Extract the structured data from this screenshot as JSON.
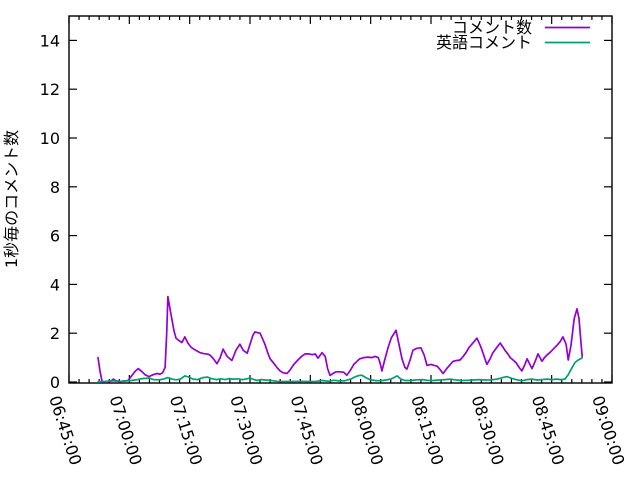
{
  "chart_data": {
    "type": "line",
    "title": "",
    "xlabel": "",
    "ylabel": "1秒毎のコメント数",
    "grid": false,
    "legend_position": "top-right-inside",
    "ylim": [
      0,
      15
    ],
    "y_ticks": [
      0,
      2,
      4,
      6,
      8,
      10,
      12,
      14
    ],
    "xlim_minutes": [
      0,
      135
    ],
    "x_axis": {
      "start": "06:45:00",
      "end": "09:00:00",
      "tick_interval_minutes": 15,
      "minor_tick_minutes": 2.5,
      "tick_labels": [
        "06:45:00",
        "07:00:00",
        "07:15:00",
        "07:30:00",
        "07:45:00",
        "08:00:00",
        "08:15:00",
        "08:30:00",
        "08:45:00",
        "09:00:00"
      ]
    },
    "x_unit": "minutes after 06:45:00",
    "series": [
      {
        "name": "コメント数",
        "color": "#9400d3",
        "points": [
          [
            7.2,
            1.0
          ],
          [
            7.7,
            0.45
          ],
          [
            8.2,
            0.03
          ],
          [
            9.4,
            0.0
          ],
          [
            10.4,
            0.03
          ],
          [
            11.0,
            0.12
          ],
          [
            11.7,
            0.05
          ],
          [
            12.8,
            0.02
          ],
          [
            13.8,
            0.04
          ],
          [
            14.7,
            0.06
          ],
          [
            15.7,
            0.28
          ],
          [
            16.5,
            0.45
          ],
          [
            17.2,
            0.55
          ],
          [
            18.2,
            0.42
          ],
          [
            18.9,
            0.3
          ],
          [
            19.9,
            0.22
          ],
          [
            20.9,
            0.3
          ],
          [
            21.9,
            0.35
          ],
          [
            22.6,
            0.32
          ],
          [
            23.3,
            0.38
          ],
          [
            23.9,
            0.6
          ],
          [
            24.3,
            2.0
          ],
          [
            24.6,
            3.5
          ],
          [
            25.1,
            3.0
          ],
          [
            25.6,
            2.55
          ],
          [
            26.1,
            2.1
          ],
          [
            26.6,
            1.8
          ],
          [
            27.3,
            1.7
          ],
          [
            28.1,
            1.62
          ],
          [
            28.8,
            1.85
          ],
          [
            29.6,
            1.58
          ],
          [
            30.4,
            1.42
          ],
          [
            31.3,
            1.32
          ],
          [
            32.6,
            1.2
          ],
          [
            33.6,
            1.16
          ],
          [
            34.6,
            1.14
          ],
          [
            35.1,
            1.1
          ],
          [
            35.9,
            0.95
          ],
          [
            36.8,
            0.75
          ],
          [
            37.6,
            1.0
          ],
          [
            38.3,
            1.35
          ],
          [
            39.3,
            1.05
          ],
          [
            40.5,
            0.88
          ],
          [
            41.5,
            1.3
          ],
          [
            42.5,
            1.55
          ],
          [
            43.3,
            1.3
          ],
          [
            44.3,
            1.18
          ],
          [
            45.0,
            1.55
          ],
          [
            45.7,
            1.9
          ],
          [
            46.2,
            2.05
          ],
          [
            47.5,
            2.0
          ],
          [
            48.7,
            1.55
          ],
          [
            49.4,
            1.2
          ],
          [
            50.0,
            0.95
          ],
          [
            51.0,
            0.75
          ],
          [
            51.7,
            0.6
          ],
          [
            52.5,
            0.45
          ],
          [
            53.2,
            0.38
          ],
          [
            54.2,
            0.35
          ],
          [
            55.0,
            0.5
          ],
          [
            55.9,
            0.72
          ],
          [
            56.9,
            0.9
          ],
          [
            57.8,
            1.05
          ],
          [
            58.7,
            1.15
          ],
          [
            59.7,
            1.15
          ],
          [
            60.5,
            1.12
          ],
          [
            61.2,
            1.15
          ],
          [
            61.9,
            0.98
          ],
          [
            62.9,
            1.2
          ],
          [
            63.7,
            1.05
          ],
          [
            64.3,
            0.55
          ],
          [
            64.9,
            0.27
          ],
          [
            65.6,
            0.35
          ],
          [
            66.4,
            0.42
          ],
          [
            67.3,
            0.42
          ],
          [
            68.3,
            0.4
          ],
          [
            69.1,
            0.28
          ],
          [
            70.0,
            0.5
          ],
          [
            70.8,
            0.72
          ],
          [
            71.6,
            0.85
          ],
          [
            72.3,
            0.95
          ],
          [
            73.3,
            1.0
          ],
          [
            74.3,
            1.02
          ],
          [
            75.3,
            1.0
          ],
          [
            76.1,
            1.05
          ],
          [
            76.9,
            1.0
          ],
          [
            77.4,
            0.75
          ],
          [
            77.8,
            0.45
          ],
          [
            78.5,
            0.9
          ],
          [
            79.3,
            1.4
          ],
          [
            80.1,
            1.8
          ],
          [
            81.3,
            2.12
          ],
          [
            82.1,
            1.5
          ],
          [
            82.8,
            0.95
          ],
          [
            83.5,
            0.6
          ],
          [
            84.0,
            0.53
          ],
          [
            84.8,
            0.9
          ],
          [
            85.5,
            1.3
          ],
          [
            86.5,
            1.38
          ],
          [
            87.5,
            1.4
          ],
          [
            88.3,
            1.1
          ],
          [
            89.0,
            0.68
          ],
          [
            90.0,
            0.72
          ],
          [
            90.8,
            0.68
          ],
          [
            91.5,
            0.65
          ],
          [
            92.3,
            0.5
          ],
          [
            93.0,
            0.35
          ],
          [
            93.9,
            0.55
          ],
          [
            94.7,
            0.7
          ],
          [
            95.5,
            0.85
          ],
          [
            96.4,
            0.88
          ],
          [
            97.2,
            0.9
          ],
          [
            98.0,
            1.05
          ],
          [
            98.7,
            1.2
          ],
          [
            99.4,
            1.4
          ],
          [
            99.9,
            1.5
          ],
          [
            100.7,
            1.65
          ],
          [
            101.4,
            1.8
          ],
          [
            102.1,
            1.55
          ],
          [
            102.7,
            1.3
          ],
          [
            103.3,
            1.0
          ],
          [
            103.9,
            0.72
          ],
          [
            104.7,
            0.95
          ],
          [
            105.4,
            1.2
          ],
          [
            106.3,
            1.4
          ],
          [
            107.2,
            1.6
          ],
          [
            107.8,
            1.45
          ],
          [
            108.4,
            1.3
          ],
          [
            109.1,
            1.15
          ],
          [
            109.7,
            1.0
          ],
          [
            110.4,
            0.9
          ],
          [
            111.1,
            0.8
          ],
          [
            111.9,
            0.6
          ],
          [
            112.6,
            0.45
          ],
          [
            113.3,
            0.7
          ],
          [
            113.9,
            0.95
          ],
          [
            114.5,
            0.75
          ],
          [
            115.1,
            0.55
          ],
          [
            115.9,
            0.85
          ],
          [
            116.6,
            1.15
          ],
          [
            117.1,
            1.0
          ],
          [
            117.6,
            0.85
          ],
          [
            118.2,
            1.0
          ],
          [
            118.8,
            1.1
          ],
          [
            119.5,
            1.2
          ],
          [
            120.1,
            1.3
          ],
          [
            120.7,
            1.4
          ],
          [
            121.3,
            1.5
          ],
          [
            122.1,
            1.65
          ],
          [
            122.8,
            1.85
          ],
          [
            123.6,
            1.55
          ],
          [
            124.1,
            0.9
          ],
          [
            124.8,
            1.5
          ],
          [
            125.6,
            2.6
          ],
          [
            126.3,
            3.0
          ],
          [
            126.8,
            2.6
          ],
          [
            127.3,
            1.6
          ],
          [
            127.6,
            1.05
          ]
        ]
      },
      {
        "name": "英語コメント",
        "color": "#009e73",
        "points": [
          [
            7.2,
            0.0
          ],
          [
            9.0,
            0.02
          ],
          [
            11.0,
            0.05
          ],
          [
            12.5,
            0.02
          ],
          [
            14.0,
            0.04
          ],
          [
            15.5,
            0.06
          ],
          [
            17.0,
            0.1
          ],
          [
            18.2,
            0.14
          ],
          [
            19.9,
            0.16
          ],
          [
            21.0,
            0.1
          ],
          [
            22.4,
            0.09
          ],
          [
            23.5,
            0.12
          ],
          [
            24.6,
            0.18
          ],
          [
            25.6,
            0.12
          ],
          [
            26.6,
            0.09
          ],
          [
            27.7,
            0.12
          ],
          [
            28.8,
            0.25
          ],
          [
            29.8,
            0.2
          ],
          [
            30.8,
            0.12
          ],
          [
            32.0,
            0.1
          ],
          [
            33.3,
            0.18
          ],
          [
            34.4,
            0.2
          ],
          [
            35.4,
            0.14
          ],
          [
            36.6,
            0.1
          ],
          [
            37.8,
            0.13
          ],
          [
            38.8,
            0.1
          ],
          [
            39.8,
            0.14
          ],
          [
            40.8,
            0.12
          ],
          [
            42.0,
            0.13
          ],
          [
            43.0,
            0.1
          ],
          [
            44.0,
            0.12
          ],
          [
            45.0,
            0.17
          ],
          [
            46.0,
            0.1
          ],
          [
            46.8,
            0.06
          ],
          [
            47.8,
            0.1
          ],
          [
            48.8,
            0.08
          ],
          [
            50.0,
            0.07
          ],
          [
            51.7,
            0.03
          ],
          [
            53.5,
            0.02
          ],
          [
            55.5,
            0.02
          ],
          [
            57.5,
            0.03
          ],
          [
            59.5,
            0.02
          ],
          [
            61.5,
            0.03
          ],
          [
            63.0,
            0.06
          ],
          [
            64.6,
            0.03
          ],
          [
            65.8,
            0.07
          ],
          [
            67.0,
            0.05
          ],
          [
            68.5,
            0.05
          ],
          [
            70.0,
            0.12
          ],
          [
            71.0,
            0.2
          ],
          [
            71.9,
            0.26
          ],
          [
            72.8,
            0.28
          ],
          [
            73.8,
            0.18
          ],
          [
            74.8,
            0.1
          ],
          [
            76.0,
            0.06
          ],
          [
            77.5,
            0.05
          ],
          [
            78.8,
            0.08
          ],
          [
            80.0,
            0.12
          ],
          [
            81.0,
            0.2
          ],
          [
            81.6,
            0.25
          ],
          [
            82.5,
            0.12
          ],
          [
            83.5,
            0.06
          ],
          [
            85.0,
            0.06
          ],
          [
            86.5,
            0.09
          ],
          [
            87.8,
            0.1
          ],
          [
            89.0,
            0.07
          ],
          [
            90.5,
            0.06
          ],
          [
            92.0,
            0.08
          ],
          [
            93.5,
            0.1
          ],
          [
            94.7,
            0.12
          ],
          [
            96.0,
            0.09
          ],
          [
            97.5,
            0.06
          ],
          [
            99.0,
            0.07
          ],
          [
            100.5,
            0.08
          ],
          [
            102.0,
            0.1
          ],
          [
            103.5,
            0.08
          ],
          [
            105.0,
            0.09
          ],
          [
            106.5,
            0.12
          ],
          [
            107.8,
            0.18
          ],
          [
            108.9,
            0.22
          ],
          [
            110.0,
            0.15
          ],
          [
            111.1,
            0.1
          ],
          [
            112.6,
            0.05
          ],
          [
            113.9,
            0.1
          ],
          [
            115.1,
            0.12
          ],
          [
            116.4,
            0.08
          ],
          [
            117.6,
            0.1
          ],
          [
            118.8,
            0.12
          ],
          [
            120.1,
            0.1
          ],
          [
            121.3,
            0.12
          ],
          [
            122.3,
            0.1
          ],
          [
            123.3,
            0.12
          ],
          [
            124.1,
            0.3
          ],
          [
            125.1,
            0.6
          ],
          [
            125.8,
            0.8
          ],
          [
            126.6,
            0.9
          ],
          [
            127.2,
            0.95
          ],
          [
            127.6,
            1.0
          ]
        ]
      }
    ],
    "colors": {
      "foreground": "#000000",
      "background": "#ffffff"
    }
  }
}
